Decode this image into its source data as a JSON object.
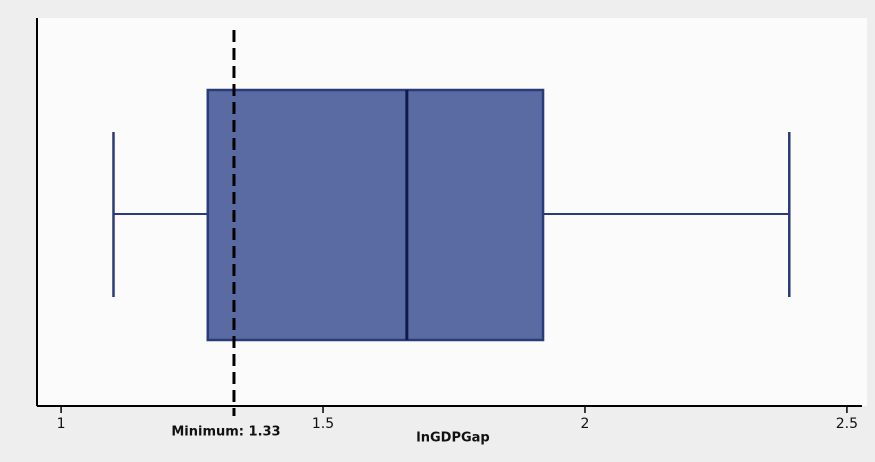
{
  "chart_data": {
    "type": "box",
    "xlabel": "lnGDPGap",
    "box": {
      "whislo": 1.1,
      "q1": 1.28,
      "med": 1.66,
      "q3": 1.92,
      "whishi": 2.39
    },
    "color": "#5a6aa2",
    "xlim": [
      0.954,
      2.525
    ],
    "xticks": [
      1,
      1.5,
      2,
      2.5
    ],
    "vline": {
      "value": 1.33,
      "label": "Minimum: 1.33"
    }
  }
}
